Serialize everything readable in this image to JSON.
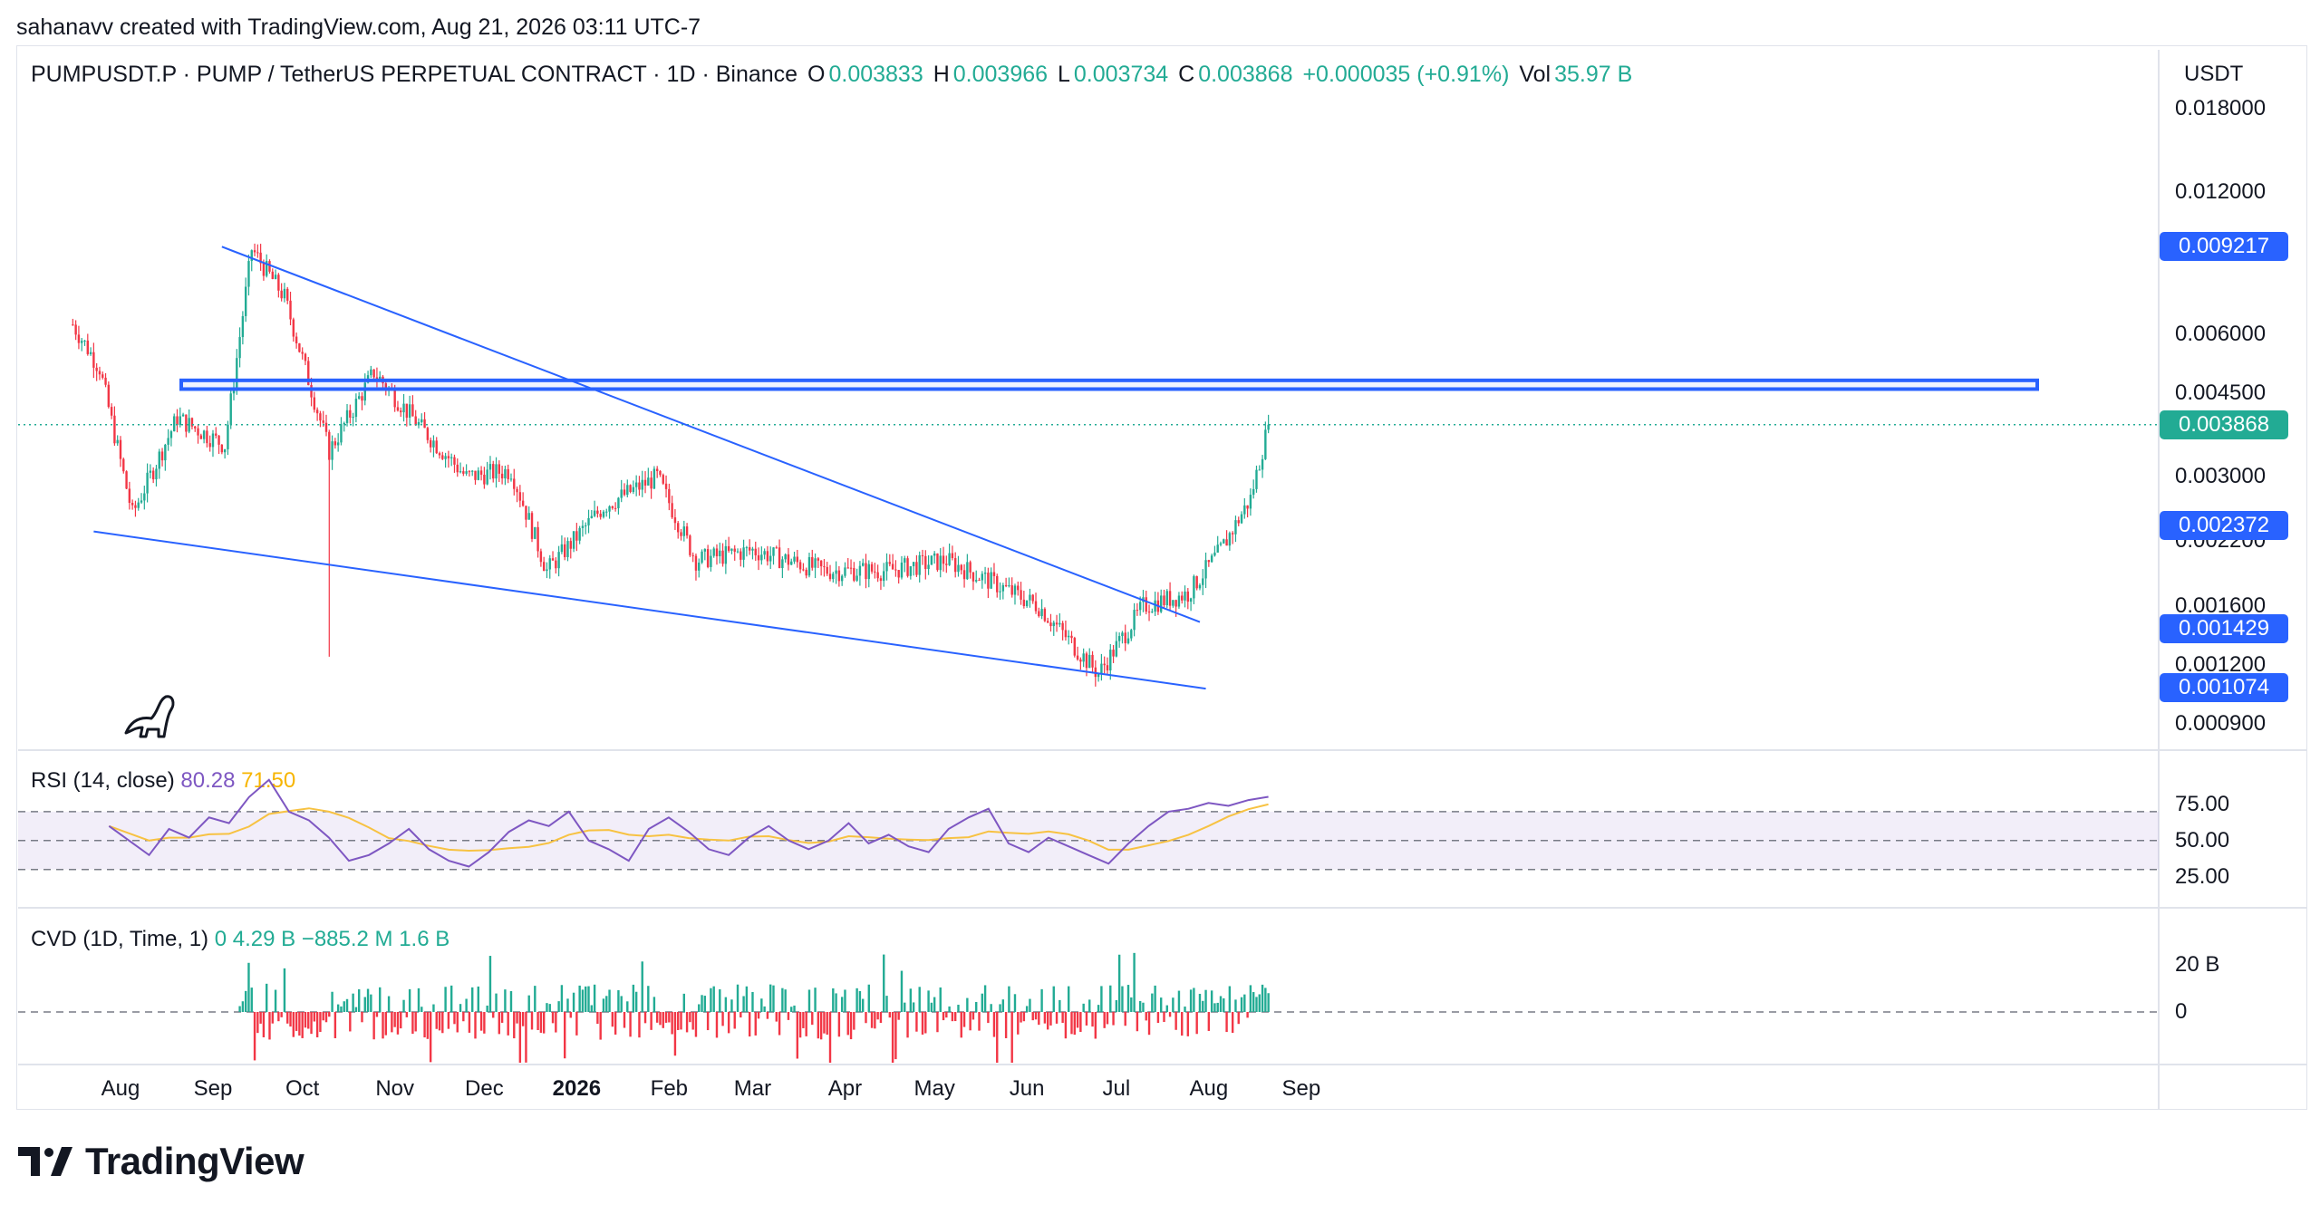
{
  "caption": "sahanavv created with TradingView.com, Aug 21, 2026 03:11 UTC-7",
  "header": {
    "symbol": "PUMPUSDT.P · PUMP / TetherUS PERPETUAL CONTRACT · 1D · Binance",
    "o_label": "O",
    "o_value": "0.003833",
    "h_label": "H",
    "h_value": "0.003966",
    "l_label": "L",
    "l_value": "0.003734",
    "c_label": "C",
    "c_value": "0.003868",
    "change": "+0.000035 (+0.91%)",
    "vol_label": "Vol",
    "vol_value": "35.97 B"
  },
  "currency": "USDT",
  "price_axis": [
    "0.018000",
    "0.012000",
    "0.006000",
    "0.004500",
    "0.003000",
    "0.002200",
    "0.001600",
    "0.001200",
    "0.000900"
  ],
  "price_tags": [
    {
      "label": "0.009217",
      "color": "#2962ff"
    },
    {
      "label": "0.003868",
      "color": "#22ab94"
    },
    {
      "label": "0.002372",
      "color": "#2962ff"
    },
    {
      "label": "0.001429",
      "color": "#2962ff"
    },
    {
      "label": "0.001074",
      "color": "#2962ff"
    }
  ],
  "rsi": {
    "title": "RSI (14, close)",
    "value": "80.28",
    "ma_value": "71.50",
    "axis": [
      "75.00",
      "50.00",
      "25.00"
    ]
  },
  "cvd": {
    "title": "CVD (1D, Time, 1)",
    "v1": "0",
    "v2": "4.29 B",
    "v3": "−885.2 M",
    "v4": "1.6 B",
    "axis": [
      "20 B",
      "0"
    ]
  },
  "time_axis": [
    "Aug",
    "Sep",
    "Oct",
    "Nov",
    "Dec",
    "2026",
    "Feb",
    "Mar",
    "Apr",
    "May",
    "Jun",
    "Jul",
    "Aug",
    "Sep"
  ],
  "brand": "TradingView",
  "colors": {
    "up": "#22ab94",
    "down": "#f23645",
    "trend": "#2962ff",
    "rsi": "#7e57c2",
    "rsi_ma": "#f7c242"
  },
  "chart_data": {
    "type": "candlestick",
    "title": "PUMPUSDT.P · PUMP / TetherUS PERPETUAL CONTRACT · 1D · Binance",
    "scale": "log",
    "ylim": [
      0.0008,
      0.024
    ],
    "series": [
      {
        "name": "price_close_approx",
        "x": [
          "2025-07-16",
          "2025-07-25",
          "2025-08-05",
          "2025-08-20",
          "2025-09-05",
          "2025-09-14",
          "2025-09-25",
          "2025-10-10",
          "2025-10-25",
          "2025-11-10",
          "2025-11-25",
          "2025-12-10",
          "2025-12-22",
          "2026-01-10",
          "2026-01-28",
          "2026-02-10",
          "2026-03-01",
          "2026-03-25",
          "2026-04-15",
          "2026-05-05",
          "2026-05-20",
          "2026-06-05",
          "2026-06-25",
          "2026-07-10",
          "2026-07-25",
          "2026-08-05",
          "2026-08-15",
          "2026-08-21"
        ],
        "values": [
          0.0063,
          0.0051,
          0.0025,
          0.004,
          0.0035,
          0.0091,
          0.0072,
          0.0034,
          0.005,
          0.0038,
          0.003,
          0.0031,
          0.0019,
          0.0026,
          0.003,
          0.002,
          0.0021,
          0.0019,
          0.0019,
          0.002,
          0.0018,
          0.0016,
          0.00115,
          0.0016,
          0.0017,
          0.0021,
          0.0027,
          0.003868
        ]
      }
    ],
    "levels": {
      "resistance_zone": [
        0.0046,
        0.0048
      ],
      "last_price": 0.003868
    },
    "rsi": {
      "last": 80.28,
      "ma_last": 71.5,
      "levels": [
        70,
        50,
        30
      ]
    },
    "cvd": {
      "last": 1.6
    }
  }
}
